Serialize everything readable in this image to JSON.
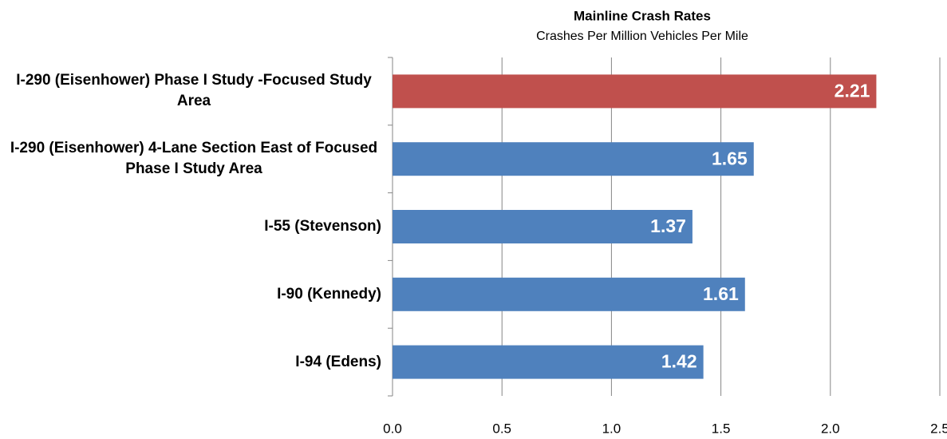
{
  "chart_data": {
    "type": "bar",
    "orientation": "horizontal",
    "title": "Mainline Crash Rates",
    "subtitle": "Crashes Per Million Vehicles Per Mile",
    "categories": [
      "I-290 (Eisenhower) Phase I Study -Focused Study Area",
      "I-290 (Eisenhower) 4-Lane Section East of Focused Phase I Study Area",
      "I-55 (Stevenson)",
      "I-90 (Kennedy)",
      "I-94 (Edens)"
    ],
    "values": [
      2.21,
      1.65,
      1.37,
      1.61,
      1.42
    ],
    "colors": [
      "#c0504d",
      "#4f81bd",
      "#4f81bd",
      "#4f81bd",
      "#4f81bd"
    ],
    "xlim": [
      0,
      2.5
    ],
    "xticks": [
      {
        "value": 0,
        "label": "0.0"
      },
      {
        "value": 0.5,
        "label": "0.5"
      },
      {
        "value": 1,
        "label": "1.0"
      },
      {
        "value": 1.5,
        "label": "1.5"
      },
      {
        "value": 2,
        "label": "2.0"
      },
      {
        "value": 2.5,
        "label": "2.5"
      }
    ],
    "grid": true
  }
}
